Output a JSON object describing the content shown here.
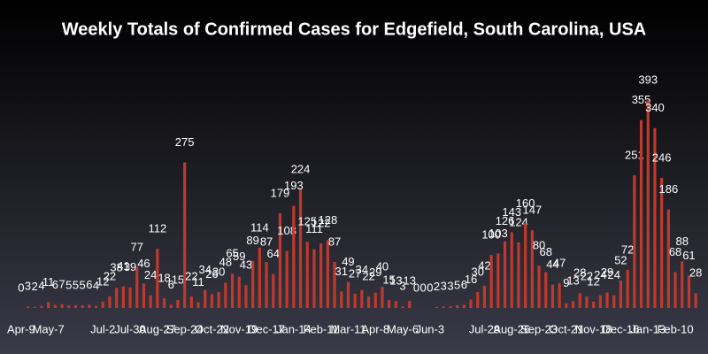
{
  "chart_data": {
    "type": "bar",
    "title": "Weekly Totals of Confirmed Cases for Edgefield, South Carolina, USA",
    "color": "#c0392b",
    "categories": [
      "Apr-9",
      null,
      null,
      null,
      "May-7",
      null,
      null,
      null,
      null,
      null,
      null,
      null,
      "Jul-2",
      null,
      null,
      null,
      "Jul-30",
      null,
      null,
      null,
      "Aug-27",
      null,
      null,
      null,
      "Sep-24",
      null,
      null,
      null,
      "Oct-22",
      null,
      null,
      null,
      "Nov-19",
      null,
      null,
      null,
      "Dec-17",
      null,
      null,
      null,
      "Jan-14",
      null,
      null,
      null,
      "Feb-11",
      null,
      null,
      null,
      "Mar-11",
      null,
      null,
      null,
      "Apr-8",
      null,
      null,
      null,
      "May-6",
      null,
      null,
      null,
      "Jun-3",
      null,
      null,
      null,
      null,
      null,
      null,
      null,
      "Jul-29",
      null,
      null,
      null,
      "Aug-26",
      null,
      null,
      null,
      "Sep-23",
      null,
      null,
      null,
      "Oct-21",
      null,
      null,
      null,
      "Nov-18",
      null,
      null,
      null,
      "Dec-16",
      null,
      null,
      null,
      "Jan-13",
      null,
      null,
      null,
      "Feb-10",
      null,
      null,
      null
    ],
    "values": [
      0,
      3,
      2,
      4,
      11,
      6,
      7,
      5,
      5,
      5,
      6,
      4,
      12,
      22,
      38,
      41,
      39,
      77,
      46,
      24,
      112,
      18,
      6,
      15,
      275,
      22,
      11,
      34,
      26,
      30,
      48,
      65,
      59,
      43,
      89,
      114,
      87,
      64,
      179,
      108,
      193,
      224,
      125,
      111,
      122,
      128,
      87,
      31,
      49,
      27,
      34,
      22,
      29,
      40,
      15,
      13,
      3,
      13,
      0,
      0,
      0,
      2,
      3,
      3,
      5,
      6,
      16,
      30,
      42,
      100,
      103,
      126,
      143,
      124,
      160,
      147,
      80,
      68,
      44,
      47,
      9,
      13,
      28,
      22,
      12,
      24,
      29,
      24,
      52,
      72,
      251,
      355,
      393,
      340,
      246,
      186,
      68,
      88,
      61,
      28
    ]
  }
}
